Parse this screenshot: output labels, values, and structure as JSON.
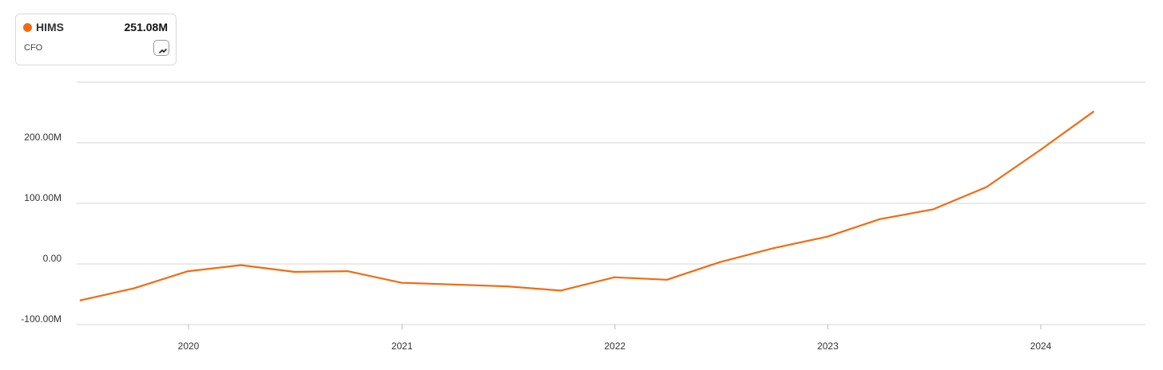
{
  "legend": {
    "ticker": "HIMS",
    "value": "251.08M",
    "metric": "CFO",
    "color": "#f26b10",
    "chart_type_icon": "line-chart-icon"
  },
  "chart_data": {
    "type": "line",
    "title": "",
    "xlabel": "",
    "ylabel": "",
    "ylim": [
      -100,
      300
    ],
    "y_ticks": [
      -100,
      0,
      100,
      200
    ],
    "y_tick_labels": [
      "-100.00M",
      "0.00",
      "100.00M",
      "200.00M"
    ],
    "x_tick_labels": [
      "2020",
      "2021",
      "2022",
      "2023",
      "2024"
    ],
    "grid": true,
    "series": [
      {
        "name": "HIMS",
        "color": "#f26b10",
        "x": [
          "2019-06-30",
          "2019-09-30",
          "2019-12-31",
          "2020-03-31",
          "2020-06-30",
          "2020-09-30",
          "2020-12-31",
          "2021-03-31",
          "2021-06-30",
          "2021-09-30",
          "2021-12-31",
          "2022-03-31",
          "2022-06-30",
          "2022-09-30",
          "2022-12-31",
          "2023-03-31",
          "2023-06-30",
          "2023-09-30",
          "2023-12-31",
          "2024-03-31"
        ],
        "values": [
          -60,
          -40,
          -12,
          -2,
          -13,
          -12,
          -31,
          -34,
          -37,
          -44,
          -22,
          -26,
          3,
          26,
          45,
          74,
          90,
          127,
          188,
          251.08
        ]
      }
    ]
  }
}
